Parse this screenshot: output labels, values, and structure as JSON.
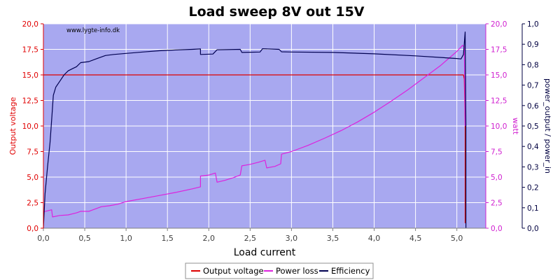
{
  "chart_data": {
    "type": "line",
    "title": "Load sweep 8V out 15V",
    "watermark": "www.lygte-info.dk",
    "xlabel": "Load current",
    "ylabel_left": "Output voltage",
    "ylabel_right1": "watt",
    "ylabel_right2": "power_output / power_in",
    "xlim": [
      0,
      5.35
    ],
    "ylim_left": [
      0,
      20
    ],
    "ylim_right1": [
      0,
      20
    ],
    "ylim_right2": [
      0,
      1
    ],
    "x_ticks": [
      "0,0",
      "0,5",
      "1,0",
      "1,5",
      "2,0",
      "2,5",
      "3,0",
      "3,5",
      "4,0",
      "4,5",
      "5,0"
    ],
    "x_tick_values": [
      0,
      0.5,
      1,
      1.5,
      2,
      2.5,
      3,
      3.5,
      4,
      4.5,
      5
    ],
    "left_ticks": [
      "0,0",
      "2,5",
      "5,0",
      "7,5",
      "10,0",
      "12,5",
      "15,0",
      "17,5",
      "20,0"
    ],
    "left_tick_values": [
      0,
      2.5,
      5,
      7.5,
      10,
      12.5,
      15,
      17.5,
      20
    ],
    "right1_ticks": [
      "0,0",
      "2,5",
      "5,0",
      "7,5",
      "10,0",
      "12,5",
      "15,0",
      "17,5",
      "20,0"
    ],
    "right1_tick_values": [
      0,
      2.5,
      5,
      7.5,
      10,
      12.5,
      15,
      17.5,
      20
    ],
    "right2_ticks": [
      "0,0",
      "0,1",
      "0,2",
      "0,3",
      "0,4",
      "0,5",
      "0,6",
      "0,7",
      "0,8",
      "0,9",
      "1,0"
    ],
    "right2_tick_values": [
      0,
      0.1,
      0.2,
      0.3,
      0.4,
      0.5,
      0.6,
      0.7,
      0.8,
      0.9,
      1.0
    ],
    "grid": true,
    "legend_position": "bottom",
    "colors": {
      "plot_bg": "#a8a8f0",
      "grid": "#ffffff",
      "left_axis": "#e00000",
      "right1_axis": "#d020d0",
      "right2_axis": "#000040",
      "title": "#000000"
    },
    "series": [
      {
        "name": "Output voltage",
        "axis": "left",
        "color": "#dd0000",
        "x": [
          0.0,
          0.5,
          1.0,
          1.5,
          2.0,
          2.5,
          3.0,
          3.5,
          4.0,
          4.5,
          5.0,
          5.08,
          5.09,
          5.1,
          5.1,
          5.1
        ],
        "y": [
          15.0,
          15.0,
          15.0,
          15.0,
          15.0,
          15.0,
          15.0,
          15.0,
          15.0,
          15.0,
          15.0,
          15.0,
          14.6,
          10.0,
          2.0,
          0.5
        ]
      },
      {
        "name": "Power loss",
        "axis": "right1",
        "color": "#dd22dd",
        "x": [
          0.0,
          0.05,
          0.1,
          0.11,
          0.2,
          0.3,
          0.4,
          0.45,
          0.55,
          0.6,
          0.7,
          0.8,
          0.9,
          1.0,
          1.2,
          1.4,
          1.6,
          1.8,
          1.9,
          1.9,
          2.0,
          2.08,
          2.1,
          2.2,
          2.3,
          2.38,
          2.4,
          2.5,
          2.6,
          2.68,
          2.7,
          2.8,
          2.87,
          2.88,
          3.0,
          3.2,
          3.4,
          3.6,
          3.8,
          4.0,
          4.2,
          4.4,
          4.6,
          4.8,
          5.0,
          5.07,
          5.09,
          5.1
        ],
        "y": [
          1.6,
          1.7,
          1.8,
          1.1,
          1.25,
          1.3,
          1.5,
          1.65,
          1.65,
          1.8,
          2.1,
          2.2,
          2.35,
          2.6,
          2.9,
          3.2,
          3.5,
          3.85,
          4.05,
          5.1,
          5.2,
          5.4,
          4.5,
          4.7,
          4.95,
          5.2,
          6.1,
          6.25,
          6.45,
          6.65,
          5.9,
          6.05,
          6.3,
          7.25,
          7.5,
          8.1,
          8.8,
          9.55,
          10.4,
          11.35,
          12.4,
          13.5,
          14.7,
          15.9,
          17.3,
          17.9,
          17.7,
          10.0
        ]
      },
      {
        "name": "Efficiency",
        "axis": "right2",
        "color": "#000050",
        "x": [
          0.0,
          0.02,
          0.05,
          0.08,
          0.1,
          0.12,
          0.15,
          0.2,
          0.25,
          0.3,
          0.35,
          0.4,
          0.45,
          0.55,
          0.65,
          0.75,
          0.85,
          1.0,
          1.2,
          1.4,
          1.6,
          1.8,
          1.9,
          1.9,
          2.05,
          2.1,
          2.38,
          2.4,
          2.5,
          2.62,
          2.65,
          2.85,
          2.88,
          3.0,
          3.5,
          4.0,
          4.5,
          5.0,
          5.05,
          5.08,
          5.1,
          5.11,
          5.11
        ],
        "y": [
          0.0,
          0.17,
          0.3,
          0.42,
          0.53,
          0.65,
          0.69,
          0.72,
          0.75,
          0.77,
          0.78,
          0.79,
          0.81,
          0.815,
          0.83,
          0.845,
          0.85,
          0.855,
          0.862,
          0.868,
          0.872,
          0.875,
          0.877,
          0.85,
          0.852,
          0.873,
          0.875,
          0.86,
          0.861,
          0.862,
          0.878,
          0.875,
          0.863,
          0.862,
          0.86,
          0.853,
          0.843,
          0.83,
          0.828,
          0.85,
          0.96,
          0.5,
          0.0
        ]
      }
    ]
  }
}
